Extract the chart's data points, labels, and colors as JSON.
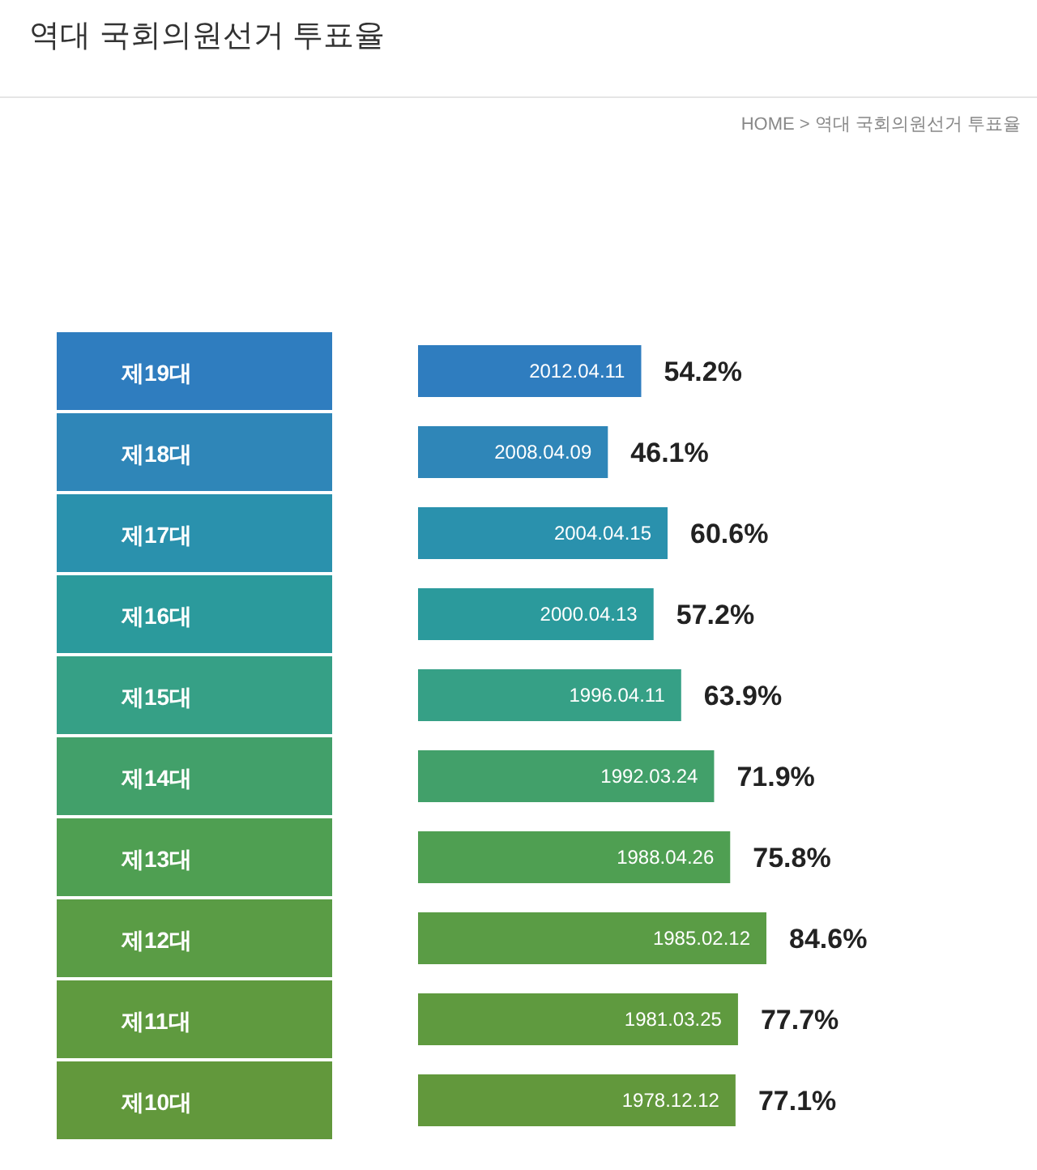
{
  "chart_data": {
    "type": "bar",
    "orientation": "horizontal",
    "title": "역대 국회의원선거 투표율",
    "categories": [
      "제19대",
      "제18대",
      "제17대",
      "제16대",
      "제15대",
      "제14대",
      "제13대",
      "제12대",
      "제11대",
      "제10대"
    ],
    "values": [
      54.2,
      46.1,
      60.6,
      57.2,
      63.9,
      71.9,
      75.8,
      84.6,
      77.7,
      77.1
    ],
    "value_labels": [
      "54.2%",
      "46.1%",
      "60.6%",
      "57.2%",
      "63.9%",
      "71.9%",
      "75.8%",
      "84.6%",
      "77.7%",
      "77.1%"
    ],
    "colors": [
      "#2f7dbf",
      "#2f86b8",
      "#2a91ad",
      "#2b9a9c",
      "#36a086",
      "#42a06a",
      "#4f9f52",
      "#5a9c45",
      "#5f9a3f",
      "#62983c"
    ],
    "annotations": [
      "HOME > 역대 국회의원선거 투표율",
      {
        "text": "2012.04.11",
        "x": 54.2,
        "y": "제19대"
      },
      {
        "text": "2008.04.09",
        "x": 46.1,
        "y": "제18대"
      },
      {
        "text": "2004.04.15",
        "x": 60.6,
        "y": "제17대"
      },
      {
        "text": "2000.04.13",
        "x": 57.2,
        "y": "제16대"
      },
      {
        "text": "1996.04.11",
        "x": 63.9,
        "y": "제15대"
      },
      {
        "text": "1992.03.24",
        "x": 71.9,
        "y": "제14대"
      },
      {
        "text": "1988.04.26",
        "x": 75.8,
        "y": "제13대"
      },
      {
        "text": "1985.02.12",
        "x": 84.6,
        "y": "제12대"
      },
      {
        "text": "1981.03.25",
        "x": 77.7,
        "y": "제11대"
      },
      {
        "text": "1978.12.12",
        "x": 77.1,
        "y": "제10대"
      }
    ]
  }
}
